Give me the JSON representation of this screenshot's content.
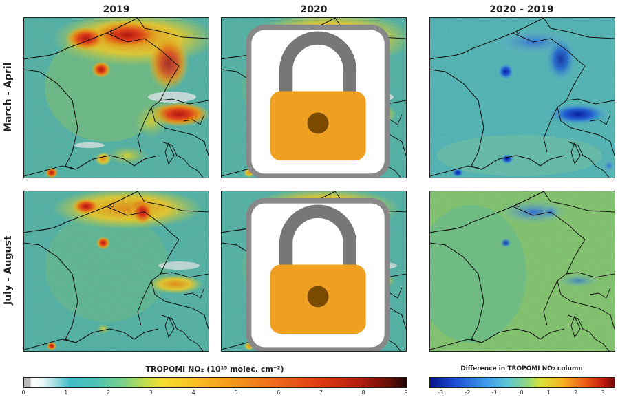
{
  "columns": [
    "2019",
    "2020",
    "2020 - 2019"
  ],
  "rows": [
    "March - April",
    "July - August"
  ],
  "colorbar_no2": {
    "title": "TROPOMI NO₂ (10¹⁵ molec. cm⁻²)",
    "ticks": [
      "0",
      "1",
      "2",
      "3",
      "4",
      "5",
      "6",
      "7",
      "8",
      "9"
    ]
  },
  "colorbar_diff": {
    "title": "Difference in TROPOMI NO₂ column",
    "ticks": [
      "-3",
      "-2",
      "-1",
      "0",
      "1",
      "2",
      "3"
    ]
  },
  "icons": {
    "lockdown": "lock-icon"
  }
}
